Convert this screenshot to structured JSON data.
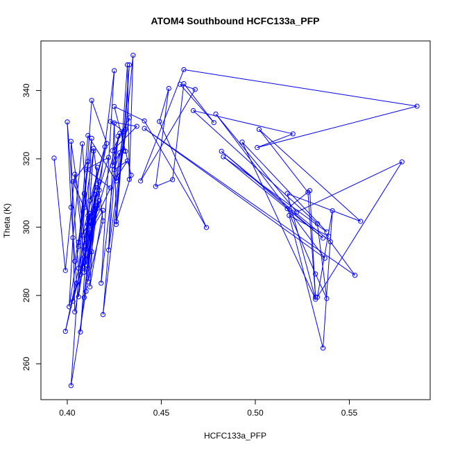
{
  "chart_data": {
    "type": "scatter",
    "title": "ATOM4 Southbound HCFC133a_PFP",
    "xlabel": "HCFC133a_PFP",
    "ylabel": "Theta (K)",
    "xlim": [
      0.386,
      0.593
    ],
    "ylim": [
      249.5,
      354.5
    ],
    "xticks": [
      0.4,
      0.45,
      0.5,
      0.55
    ],
    "xtick_labels": [
      "0.40",
      "0.45",
      "0.50",
      "0.55"
    ],
    "yticks": [
      260,
      280,
      300,
      320,
      340
    ],
    "ytick_labels": [
      "260",
      "280",
      "300",
      "320",
      "340"
    ],
    "grid": false,
    "legend": "none",
    "series": [
      {
        "color": "#0000ff",
        "connected": true,
        "marker": "open-circle",
        "points": [
          [
            0.393,
            320.2
          ],
          [
            0.399,
            287.3
          ],
          [
            0.404,
            315.5
          ],
          [
            0.409,
            291.2
          ],
          [
            0.412,
            304.0
          ],
          [
            0.406,
            288.0
          ],
          [
            0.4,
            330.8
          ],
          [
            0.402,
            305.8
          ],
          [
            0.405,
            283.6
          ],
          [
            0.399,
            269.5
          ],
          [
            0.411,
            300.8
          ],
          [
            0.408,
            324.4
          ],
          [
            0.403,
            296.9
          ],
          [
            0.401,
            276.7
          ],
          [
            0.414,
            322.3
          ],
          [
            0.41,
            293.5
          ],
          [
            0.402,
            325.1
          ],
          [
            0.404,
            275.2
          ],
          [
            0.416,
            311.6
          ],
          [
            0.41,
            281.2
          ],
          [
            0.402,
            253.6
          ],
          [
            0.409,
            309.8
          ],
          [
            0.412,
            300.4
          ],
          [
            0.421,
            324.5
          ],
          [
            0.413,
            337.1
          ],
          [
            0.406,
            279.6
          ],
          [
            0.416,
            317.5
          ],
          [
            0.407,
            269.3
          ],
          [
            0.414,
            323.0
          ],
          [
            0.419,
            301.8
          ],
          [
            0.411,
            284.0
          ],
          [
            0.425,
            345.8
          ],
          [
            0.418,
            283.6
          ],
          [
            0.427,
            326.6
          ],
          [
            0.419,
            274.4
          ],
          [
            0.431,
            328.6
          ],
          [
            0.422,
            293.3
          ],
          [
            0.425,
            330.5
          ],
          [
            0.426,
            300.8
          ],
          [
            0.433,
            347.5
          ],
          [
            0.43,
            322.3
          ],
          [
            0.435,
            350.3
          ],
          [
            0.433,
            314.0
          ],
          [
            0.432,
            347.5
          ],
          [
            0.426,
            301.6
          ],
          [
            0.434,
            315.2
          ],
          [
            0.431,
            322.2
          ],
          [
            0.425,
            335.3
          ],
          [
            0.441,
            331.1
          ],
          [
            0.474,
            299.9
          ],
          [
            0.449,
            330.9
          ],
          [
            0.454,
            340.6
          ],
          [
            0.447,
            311.9
          ],
          [
            0.456,
            313.9
          ],
          [
            0.462,
            342.0
          ],
          [
            0.478,
            330.6
          ],
          [
            0.46,
            341.8
          ],
          [
            0.468,
            340.3
          ],
          [
            0.439,
            313.5
          ],
          [
            0.462,
            346.1
          ],
          [
            0.586,
            335.4
          ],
          [
            0.501,
            323.3
          ],
          [
            0.52,
            327.3
          ],
          [
            0.467,
            334.1
          ],
          [
            0.533,
            301.0
          ],
          [
            0.538,
            279.1
          ],
          [
            0.532,
            286.3
          ],
          [
            0.517,
            305.4
          ],
          [
            0.529,
            310.7
          ],
          [
            0.532,
            279.5
          ],
          [
            0.528,
            310.2
          ],
          [
            0.502,
            328.6
          ],
          [
            0.556,
            301.7
          ],
          [
            0.517,
            309.8
          ],
          [
            0.532,
            278.9
          ],
          [
            0.493,
            324.9
          ],
          [
            0.538,
            298.6
          ],
          [
            0.483,
            320.6
          ],
          [
            0.536,
            296.8
          ],
          [
            0.482,
            322.2
          ],
          [
            0.54,
            295.7
          ],
          [
            0.553,
            285.9
          ],
          [
            0.441,
            328.9
          ],
          [
            0.537,
            290.9
          ],
          [
            0.479,
            333.1
          ],
          [
            0.522,
            304.4
          ],
          [
            0.578,
            319.1
          ],
          [
            0.533,
            279.5
          ],
          [
            0.541,
            304.8
          ],
          [
            0.536,
            264.6
          ],
          [
            0.518,
            303.4
          ],
          [
            0.539,
            297.3
          ]
        ]
      },
      {
        "color": "#0000ff",
        "connected": true,
        "marker": "open-circle",
        "points": [
          [
            0.404,
            290.0
          ],
          [
            0.409,
            305.7
          ],
          [
            0.403,
            313.3
          ],
          [
            0.411,
            319.2
          ],
          [
            0.406,
            295.6
          ],
          [
            0.413,
            326.0
          ],
          [
            0.409,
            286.8
          ],
          [
            0.411,
            303.4
          ],
          [
            0.407,
            286.1
          ],
          [
            0.416,
            306.3
          ],
          [
            0.408,
            297.6
          ],
          [
            0.42,
            323.5
          ],
          [
            0.412,
            307.8
          ],
          [
            0.417,
            313.2
          ],
          [
            0.41,
            298.7
          ],
          [
            0.422,
            320.4
          ],
          [
            0.41,
            316.9
          ],
          [
            0.423,
            311.5
          ],
          [
            0.414,
            301.1
          ],
          [
            0.428,
            327.5
          ],
          [
            0.424,
            318.0
          ],
          [
            0.428,
            321.8
          ],
          [
            0.425,
            316.8
          ],
          [
            0.432,
            319.4
          ],
          [
            0.426,
            314.4
          ],
          [
            0.43,
            328.0
          ],
          [
            0.423,
            330.9
          ],
          [
            0.437,
            329.5
          ],
          [
            0.424,
            322.4
          ],
          [
            0.433,
            332.0
          ],
          [
            0.426,
            313.5
          ],
          [
            0.411,
            326.8
          ],
          [
            0.406,
            294.3
          ],
          [
            0.413,
            292.8
          ],
          [
            0.408,
            288.3
          ],
          [
            0.417,
            307.7
          ],
          [
            0.41,
            296.5
          ],
          [
            0.419,
            304.9
          ],
          [
            0.412,
            282.5
          ],
          [
            0.415,
            309.5
          ],
          [
            0.409,
            279.4
          ],
          [
            0.414,
            303.0
          ],
          [
            0.411,
            287.9
          ],
          [
            0.417,
            310.8
          ],
          [
            0.41,
            289.0
          ],
          [
            0.412,
            298.3
          ],
          [
            0.403,
            278.3
          ],
          [
            0.416,
            305.5
          ]
        ]
      }
    ]
  }
}
